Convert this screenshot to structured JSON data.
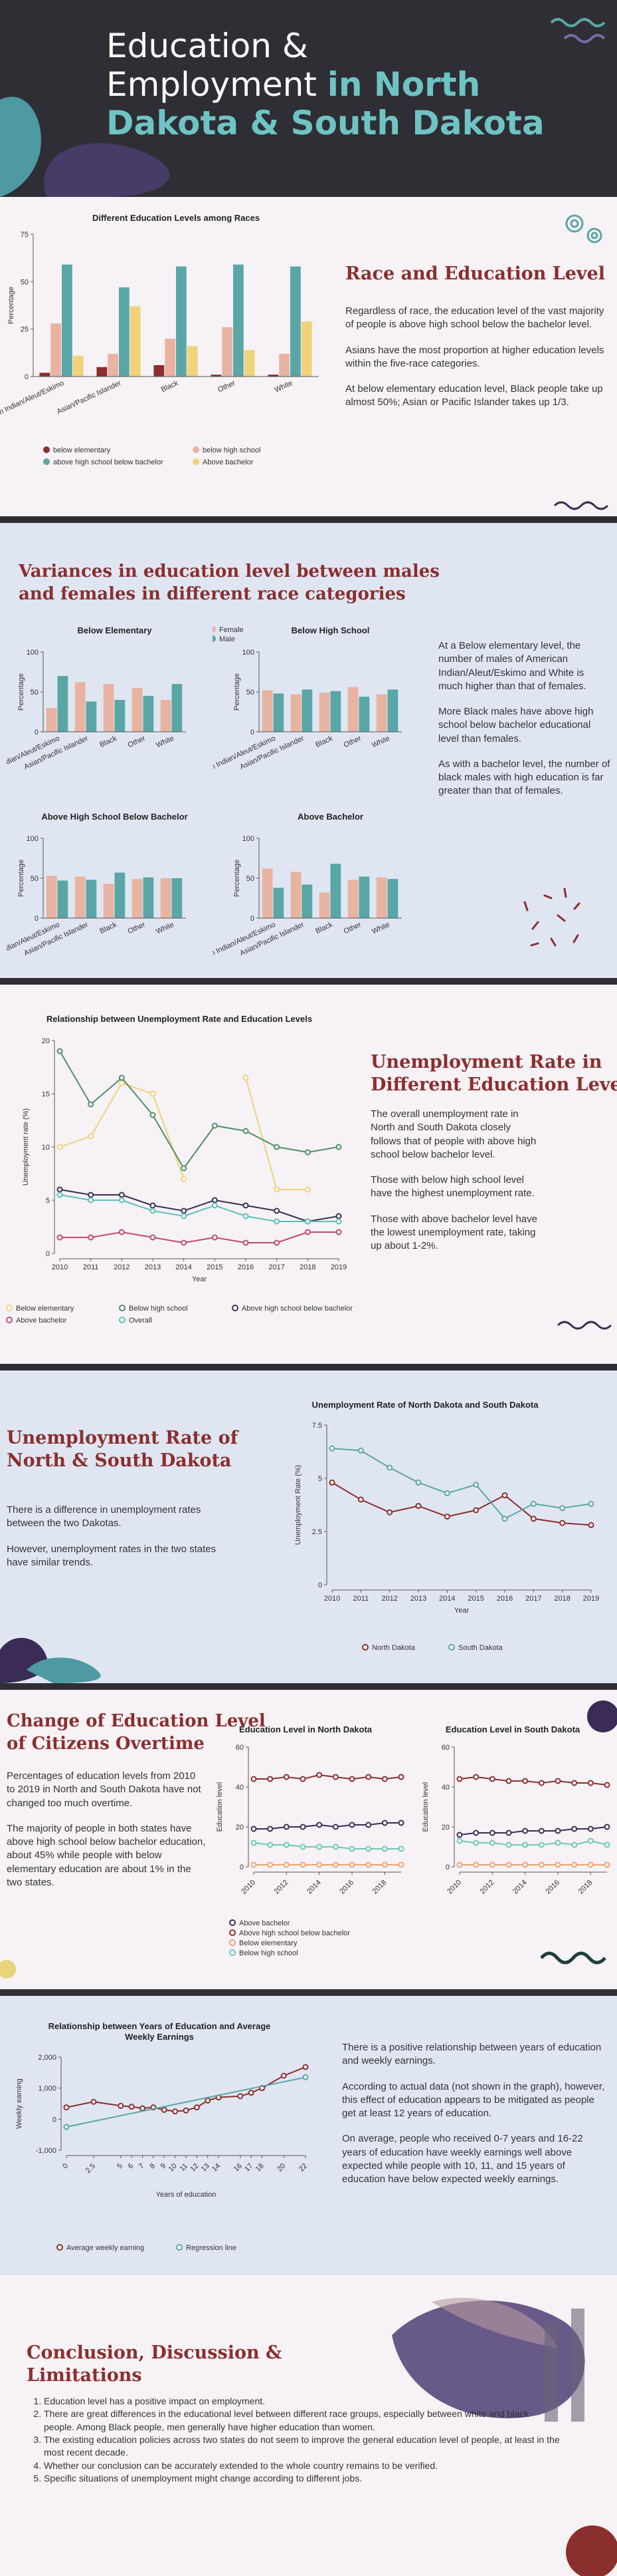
{
  "colors": {
    "dark": "#2e2e34",
    "maroon": "#8b2e2e",
    "teal": "#5aa6a6",
    "teal_dark": "#4d9696",
    "salmon": "#e9b3a1",
    "yellow": "#f0d27a",
    "purple": "#3b2c55",
    "light_blue": "#dfe6f2",
    "pink_bg": "#f6f2f5"
  },
  "header": {
    "title_line1": "Education &",
    "title_line2": "Employment",
    "title_accent1": "in North",
    "title_accent2": "Dakota & South Dakota"
  },
  "s1": {
    "heading": "Race and Education Level",
    "p1": "Regardless of race, the education level of the vast majority of people is above high school below the bachelor level.",
    "p2": "Asians have the most proportion at higher education levels within the five-race categories.",
    "p3": "At below elementary education level, Black people take up almost 50%; Asian or Pacific Islander takes up 1/3."
  },
  "s2": {
    "heading_line1": "Variances in education level between males",
    "heading_line2": "and females in different race categories",
    "p1": "At a Below elementary level, the number of males of American Indian/Aleut/Eskimo and White is much higher than that of females.",
    "p2": "More Black males have above high school below bachelor educational level than females.",
    "p3": "As with a bachelor level, the number of black males with high education is far greater than that of females."
  },
  "s3": {
    "heading_line1": "Unemployment Rate in",
    "heading_line2": "Different Education Levels",
    "p1": "The overall unemployment rate in North and South Dakota closely follows that of people with above high school below bachelor level.",
    "p2": "Those with below high school level have the highest unemployment rate.",
    "p3": "Those with above bachelor level have the lowest unemployment rate, taking up about 1-2%."
  },
  "s4": {
    "heading_line1": "Unemployment Rate of",
    "heading_line2": "North & South Dakota",
    "p1": "There is a difference in unemployment rates between the two Dakotas.",
    "p2": "However, unemployment rates in the two states have similar trends."
  },
  "s5": {
    "heading_line1": "Change of Education Level",
    "heading_line2": "of Citizens Overtime",
    "p1": "Percentages of education levels from 2010 to 2019 in North and South Dakota have not changed too much overtime.",
    "p2": "The majority of people in both states have above high school below bachelor education, about 45% while people with below elementary education are about 1% in the two states."
  },
  "s6": {
    "p1": "There is a positive relationship between years of education and weekly earnings.",
    "p2": "According to actual data (not shown in the graph), however, this effect of education appears to be mitigated as people get at least 12 years of education.",
    "p3": "On average, people who received 0-7 years and 16-22 years of education have weekly earnings well above expected while people with 10, 11, and 15 years of education have below expected weekly earnings."
  },
  "s7": {
    "heading_line1": "Conclusion, Discussion &",
    "heading_line2": "Limitations",
    "items": [
      "Education level has a positive impact on employment.",
      "There are great differences in the educational level between different race groups, especially between white and black people. Among Black people, men generally have higher education than women.",
      "The existing education policies across two states do not seem to improve the general education level of people, at least in the most recent decade.",
      "Whether our conclusion can be accurately extended to the whole country remains to be verified.",
      "Specific situations of unemployment might change according to different jobs."
    ]
  },
  "chart_data": [
    {
      "id": "race_edu",
      "type": "bar",
      "title": "Different Education Levels among Races",
      "categories": [
        "American Indian/Aleut/Eskimo",
        "Asian/Pacific Islander",
        "Black",
        "Other",
        "White"
      ],
      "ylabel": "Percentage",
      "ylim": [
        0,
        75
      ],
      "yticks": [
        0,
        25,
        50,
        75
      ],
      "series": [
        {
          "name": "below elementary",
          "color": "#8b2e2e",
          "values": [
            2,
            5,
            6,
            1,
            1
          ]
        },
        {
          "name": "below high school",
          "color": "#e9b3a1",
          "values": [
            28,
            12,
            20,
            26,
            12
          ]
        },
        {
          "name": "above high school below bachelor",
          "color": "#5aa6a6",
          "values": [
            59,
            47,
            58,
            59,
            58
          ]
        },
        {
          "name": "Above bachelor",
          "color": "#f0d27a",
          "values": [
            11,
            37,
            16,
            14,
            29
          ]
        }
      ]
    },
    {
      "id": "sex_below_elem",
      "type": "bar",
      "title": "Below Elementary",
      "ylabel": "Percentage",
      "ylim": [
        0,
        100
      ],
      "yticks": [
        0,
        50,
        100
      ],
      "categories": [
        "American Indian/Aleut/Eskimo",
        "Asian/Pacific Islander",
        "Black",
        "Other",
        "White"
      ],
      "series": [
        {
          "name": "Female",
          "color": "#e9b3a1",
          "values": [
            30,
            62,
            60,
            55,
            40
          ]
        },
        {
          "name": "Male",
          "color": "#5aa6a6",
          "values": [
            70,
            38,
            40,
            45,
            60
          ]
        }
      ]
    },
    {
      "id": "sex_below_hs",
      "type": "bar",
      "title": "Below High School",
      "ylabel": "Percentage",
      "ylim": [
        0,
        100
      ],
      "yticks": [
        0,
        50,
        100
      ],
      "categories": [
        "American Indian/Aleut/Eskimo",
        "Asian/Pacific Islander",
        "Black",
        "Other",
        "White"
      ],
      "series": [
        {
          "name": "Female",
          "color": "#e9b3a1",
          "values": [
            52,
            47,
            49,
            56,
            47
          ]
        },
        {
          "name": "Male",
          "color": "#5aa6a6",
          "values": [
            48,
            53,
            51,
            44,
            53
          ]
        }
      ]
    },
    {
      "id": "sex_above_hs",
      "type": "bar",
      "title": "Above High School Below Bachelor",
      "ylabel": "Percentage",
      "ylim": [
        0,
        100
      ],
      "yticks": [
        0,
        50,
        100
      ],
      "categories": [
        "American Indian/Aleut/Eskimo",
        "Asian/Pacific Islander",
        "Black",
        "Other",
        "White"
      ],
      "series": [
        {
          "name": "Female",
          "color": "#e9b3a1",
          "values": [
            53,
            52,
            43,
            49,
            50
          ]
        },
        {
          "name": "Male",
          "color": "#5aa6a6",
          "values": [
            47,
            48,
            57,
            51,
            50
          ]
        }
      ]
    },
    {
      "id": "sex_above_bach",
      "type": "bar",
      "title": "Above Bachelor",
      "ylabel": "Percentage",
      "ylim": [
        0,
        100
      ],
      "yticks": [
        0,
        50,
        100
      ],
      "categories": [
        "American Indian/Aleut/Eskimo",
        "Asian/Pacific Islander",
        "Black",
        "Other",
        "White"
      ],
      "series": [
        {
          "name": "Female",
          "color": "#e9b3a1",
          "values": [
            62,
            58,
            32,
            48,
            51
          ]
        },
        {
          "name": "Male",
          "color": "#5aa6a6",
          "values": [
            38,
            42,
            68,
            52,
            49
          ]
        }
      ]
    },
    {
      "id": "unemp_edu",
      "type": "line",
      "title": "Relationship between Unemployment Rate and Education Levels",
      "x": [
        2010,
        2011,
        2012,
        2013,
        2014,
        2015,
        2016,
        2017,
        2018,
        2019
      ],
      "xlabel": "Year",
      "ylabel": "Unemployment rate (%)",
      "ylim": [
        0,
        20
      ],
      "yticks": [
        0,
        5,
        10,
        15,
        20
      ],
      "series": [
        {
          "name": "Below elementary",
          "color": "#f0d27a",
          "values": [
            10,
            11,
            16,
            15,
            7,
            null,
            16.5,
            6,
            6,
            null
          ]
        },
        {
          "name": "Below high school",
          "color": "#4f8f6a",
          "values": [
            19,
            14,
            16.5,
            13,
            8,
            12,
            11.5,
            10,
            9.5,
            10
          ]
        },
        {
          "name": "Above high school below bachelor",
          "color": "#3b2c55",
          "values": [
            6,
            5.5,
            5.5,
            4.5,
            4,
            5,
            4.5,
            4,
            3,
            3.5
          ]
        },
        {
          "name": "Above bachelor",
          "color": "#c04a6a",
          "values": [
            1.5,
            1.5,
            2,
            1.5,
            1,
            1.5,
            1,
            1,
            2,
            2
          ]
        },
        {
          "name": "Overall",
          "color": "#5ec0b8",
          "values": [
            5.5,
            5,
            5,
            4,
            3.5,
            4.5,
            3.5,
            3,
            3,
            3
          ]
        }
      ]
    },
    {
      "id": "unemp_states",
      "type": "line",
      "title": "Unemployment Rate of North Dakota and South Dakota",
      "x": [
        2010,
        2011,
        2012,
        2013,
        2014,
        2015,
        2016,
        2017,
        2018,
        2019
      ],
      "xlabel": "Year",
      "ylabel": "Unemployment Rate (%)",
      "ylim": [
        0,
        7.5
      ],
      "yticks": [
        0,
        2.5,
        5,
        7.5
      ],
      "series": [
        {
          "name": "North Dakota",
          "color": "#8b2e2e",
          "values": [
            4.8,
            4.0,
            3.4,
            3.7,
            3.2,
            3.5,
            4.2,
            3.1,
            2.9,
            2.8
          ]
        },
        {
          "name": "South Dakota",
          "color": "#5aa6a6",
          "values": [
            6.4,
            6.3,
            5.5,
            4.8,
            4.3,
            4.7,
            3.1,
            3.8,
            3.6,
            3.8
          ]
        }
      ]
    },
    {
      "id": "edu_nd",
      "type": "line",
      "title": "Education Level in North Dakota",
      "x": [
        2010,
        2011,
        2012,
        2013,
        2014,
        2015,
        2016,
        2017,
        2018,
        2019
      ],
      "xticks": [
        2010,
        2012,
        2014,
        2016,
        2018
      ],
      "ylabel": "Education level",
      "ylim": [
        0,
        60
      ],
      "yticks": [
        0,
        20,
        40,
        60
      ],
      "series": [
        {
          "name": "Above bachelor",
          "color": "#3b2c55",
          "values": [
            19,
            19,
            20,
            20,
            21,
            20,
            21,
            21,
            22,
            22
          ]
        },
        {
          "name": "Above high school below bachelor",
          "color": "#8b2e2e",
          "values": [
            44,
            44,
            45,
            44,
            46,
            45,
            44,
            45,
            44,
            45
          ]
        },
        {
          "name": "Below elementary",
          "color": "#f0a070",
          "values": [
            1,
            1,
            1,
            1,
            1,
            1,
            1,
            1,
            1,
            1
          ]
        },
        {
          "name": "Below high school",
          "color": "#6ac8b8",
          "values": [
            12,
            11,
            11,
            10,
            10,
            10,
            9,
            9,
            9,
            9
          ]
        }
      ]
    },
    {
      "id": "edu_sd",
      "type": "line",
      "title": "Education Level in South Dakota",
      "x": [
        2010,
        2011,
        2012,
        2013,
        2014,
        2015,
        2016,
        2017,
        2018,
        2019
      ],
      "xticks": [
        2010,
        2012,
        2014,
        2016,
        2018
      ],
      "ylabel": "Education level",
      "ylim": [
        0,
        60
      ],
      "yticks": [
        0,
        20,
        40,
        60
      ],
      "series": [
        {
          "name": "Above bachelor",
          "color": "#3b2c55",
          "values": [
            16,
            17,
            17,
            17,
            18,
            18,
            18,
            19,
            19,
            20
          ]
        },
        {
          "name": "Above high school below bachelor",
          "color": "#8b2e2e",
          "values": [
            44,
            45,
            44,
            43,
            43,
            42,
            43,
            42,
            42,
            41
          ]
        },
        {
          "name": "Below elementary",
          "color": "#f0a070",
          "values": [
            1,
            1,
            1,
            1,
            1,
            1,
            1,
            1,
            1,
            1
          ]
        },
        {
          "name": "Below high school",
          "color": "#6ac8b8",
          "values": [
            13,
            12,
            12,
            11,
            11,
            11,
            12,
            11,
            13,
            11
          ]
        }
      ]
    },
    {
      "id": "years_earn",
      "type": "line",
      "title_line1": "Relationship between Years of Education and Average",
      "title_line2": "Weekly Earnings",
      "x": [
        0,
        2.5,
        5,
        6,
        7,
        8,
        9,
        10,
        11,
        12,
        13,
        14,
        16,
        17,
        18,
        20,
        22
      ],
      "xlabel": "Years of education",
      "ylabel": "Weekly earning",
      "ylim": [
        -1000,
        2000
      ],
      "yticks": [
        -1000,
        0,
        1000,
        2000
      ],
      "series": [
        {
          "name": "Average weekly earning",
          "color": "#8b2e2e",
          "values": [
            380,
            560,
            430,
            400,
            350,
            380,
            300,
            250,
            280,
            380,
            600,
            700,
            740,
            850,
            1000,
            1400,
            1680
          ]
        },
        {
          "name": "Regression line",
          "color": "#5aa6a6",
          "values": [
            -250,
            null,
            null,
            null,
            null,
            null,
            null,
            null,
            null,
            null,
            null,
            null,
            null,
            null,
            null,
            null,
            1350
          ]
        }
      ]
    }
  ]
}
